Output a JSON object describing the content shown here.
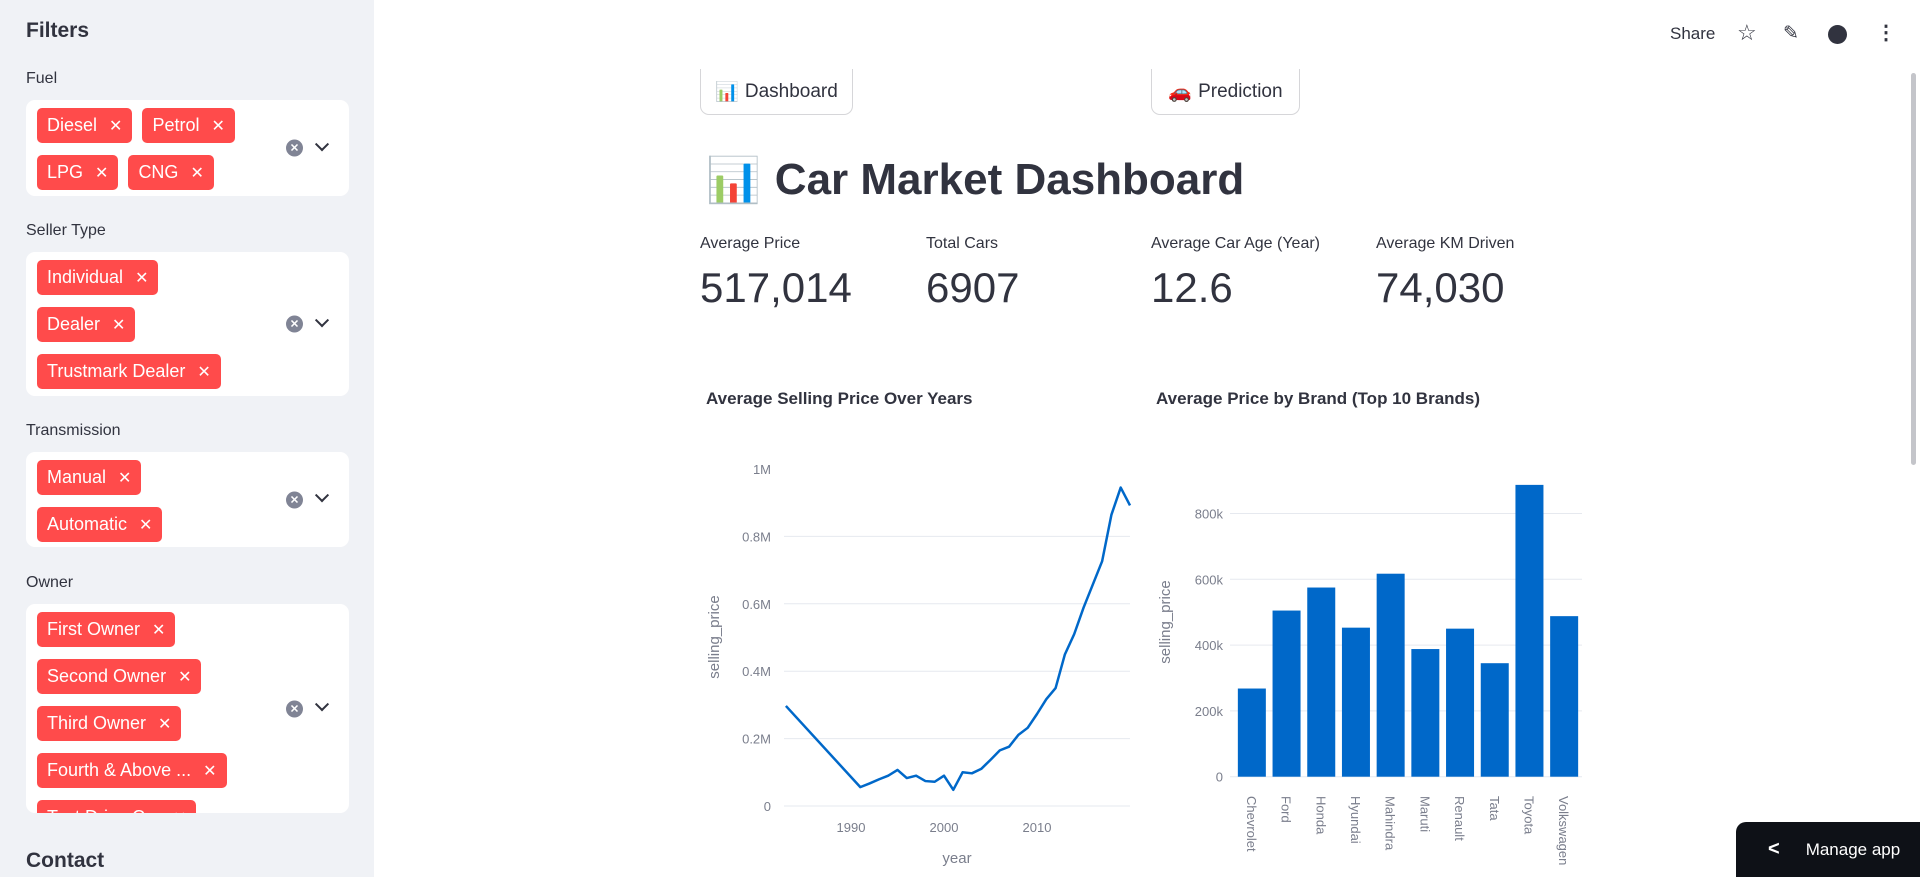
{
  "sidebar": {
    "title": "Filters",
    "filters": [
      {
        "label": "Fuel",
        "chips": [
          "Diesel",
          "Petrol",
          "LPG",
          "CNG"
        ]
      },
      {
        "label": "Seller Type",
        "chips": [
          "Individual",
          "Dealer",
          "Trustmark Dealer"
        ]
      },
      {
        "label": "Transmission",
        "chips": [
          "Manual",
          "Automatic"
        ]
      },
      {
        "label": "Owner",
        "chips": [
          "First Owner",
          "Second Owner",
          "Third Owner",
          "Fourth & Above ...",
          "Test Drive Car"
        ]
      }
    ],
    "contact": "Contact"
  },
  "header": {
    "share": "Share"
  },
  "nav": {
    "dashboard": "Dashboard",
    "prediction": "Prediction"
  },
  "page": {
    "title": "Car Market Dashboard"
  },
  "metrics": [
    {
      "label": "Average Price",
      "value": "517,014"
    },
    {
      "label": "Total Cars",
      "value": "6907"
    },
    {
      "label": "Average Car Age (Year)",
      "value": "12.6"
    },
    {
      "label": "Average KM Driven",
      "value": "74,030"
    }
  ],
  "manage_app": "Manage app",
  "colors": {
    "accent": "#ff4b4b",
    "series": "#0068c9"
  },
  "chart_data": [
    {
      "type": "line",
      "title": "Average Selling Price Over Years",
      "xlabel": "year",
      "ylabel": "selling_price",
      "x": [
        1983,
        1991,
        1992,
        1993,
        1994,
        1995,
        1996,
        1997,
        1998,
        1999,
        2000,
        2001,
        2002,
        2003,
        2004,
        2005,
        2006,
        2007,
        2008,
        2009,
        2010,
        2011,
        2012,
        2013,
        2014,
        2015,
        2016,
        2017,
        2018,
        2019,
        2020
      ],
      "y": [
        297000,
        56000,
        67000,
        79000,
        90000,
        107000,
        83000,
        90000,
        74000,
        72000,
        90000,
        48000,
        100000,
        97000,
        110000,
        137000,
        165000,
        176000,
        211000,
        232000,
        273000,
        317000,
        350000,
        450000,
        510000,
        588000,
        657000,
        726000,
        864000,
        945000,
        892000
      ],
      "xticks": [
        1990,
        2000,
        2010
      ],
      "yticks": [
        0,
        200000,
        400000,
        600000,
        800000,
        1000000
      ],
      "ytick_labels": [
        "0",
        "0.2M",
        "0.4M",
        "0.6M",
        "0.8M",
        "1M"
      ],
      "xlim": [
        1983,
        2020
      ],
      "ylim": [
        0,
        1000000
      ]
    },
    {
      "type": "bar",
      "title": "Average Price by Brand (Top 10 Brands)",
      "xlabel": "",
      "ylabel": "selling_price",
      "categories": [
        "Chevrolet",
        "Ford",
        "Honda",
        "Hyundai",
        "Mahindra",
        "Maruti",
        "Renault",
        "Tata",
        "Toyota",
        "Volkswagen"
      ],
      "values": [
        268000,
        505000,
        575000,
        453000,
        617000,
        388000,
        450000,
        345000,
        887000,
        488000
      ],
      "yticks": [
        0,
        200000,
        400000,
        600000,
        800000
      ],
      "ytick_labels": [
        "0",
        "200k",
        "400k",
        "600k",
        "800k"
      ]
    }
  ]
}
